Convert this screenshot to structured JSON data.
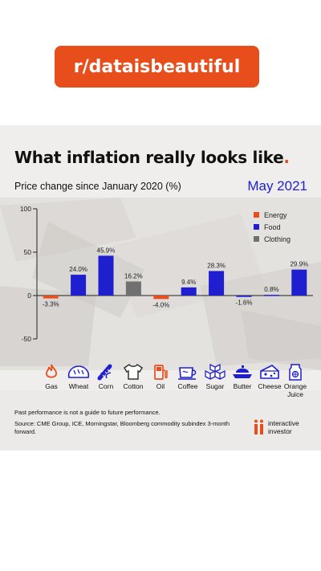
{
  "header": {
    "subreddit": "r/dataisbeautiful"
  },
  "card": {
    "title": "What inflation really looks like",
    "title_dot": ".",
    "subtitle": "Price change since January 2020 (%)",
    "date": "May 2021",
    "footnote_1": "Past performance is not a guide to future performance.",
    "footnote_2": "Source: CME Group, ICE, Morningstar, Bloomberg commodity subindex 3-month forward.",
    "brand_line1": "interactive",
    "brand_line2": "investor"
  },
  "colors": {
    "accent": "#e84e1b",
    "food": "#1f1fd0",
    "energy": "#e84e1b",
    "clothing": "#707070"
  },
  "icons": [
    {
      "name": "flame-icon",
      "label": "Gas"
    },
    {
      "name": "bread-icon",
      "label": "Wheat"
    },
    {
      "name": "corn-icon",
      "label": "Corn"
    },
    {
      "name": "tshirt-icon",
      "label": "Cotton"
    },
    {
      "name": "fuel-pump-icon",
      "label": "Oil"
    },
    {
      "name": "coffee-cup-icon",
      "label": "Coffee"
    },
    {
      "name": "sugar-cubes-icon",
      "label": "Sugar"
    },
    {
      "name": "butter-dish-icon",
      "label": "Butter"
    },
    {
      "name": "cheese-icon",
      "label": "Cheese"
    },
    {
      "name": "juice-carton-icon",
      "label": "Orange\nJuice"
    }
  ],
  "chart_data": {
    "type": "bar",
    "title": "What inflation really looks like.",
    "subtitle": "Price change since January 2020 (%)",
    "categories": [
      "Gas",
      "Wheat",
      "Corn",
      "Cotton",
      "Oil",
      "Coffee",
      "Sugar",
      "Butter",
      "Cheese",
      "Orange Juice"
    ],
    "values": [
      -3.3,
      24.0,
      45.9,
      16.2,
      -4.0,
      9.4,
      28.3,
      -1.6,
      0.8,
      29.9
    ],
    "value_labels": [
      "-3.3%",
      "24.0%",
      "45.9%",
      "16.2%",
      "-4.0%",
      "9.4%",
      "28.3%",
      "-1.6%",
      "0.8%",
      "29.9%"
    ],
    "groups": [
      "Energy",
      "Food",
      "Food",
      "Clothing",
      "Energy",
      "Food",
      "Food",
      "Food",
      "Food",
      "Food"
    ],
    "legend": [
      "Energy",
      "Food",
      "Clothing"
    ],
    "legend_position": "top-right",
    "ylim": [
      -50,
      100
    ],
    "yticks": [
      100,
      50,
      0,
      -50
    ],
    "grid": false
  }
}
